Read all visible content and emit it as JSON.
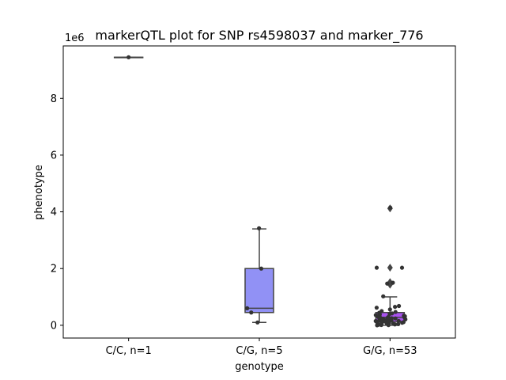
{
  "chart_data": {
    "type": "box",
    "title": "markerQTL plot for SNP rs4598037 and marker_776",
    "xlabel": "genotype",
    "ylabel": "phenotype",
    "y_scale_label": "1e6",
    "y_multiplier": 1000000,
    "ylim": [
      -450000,
      9850000
    ],
    "yticks": [
      0,
      2000000,
      4000000,
      6000000,
      8000000
    ],
    "ytick_labels": [
      "0",
      "2",
      "4",
      "6",
      "8"
    ],
    "categories": [
      "C/C, n=1",
      "C/G, n=5",
      "G/G, n=53"
    ],
    "boxes": [
      {
        "category": "C/C, n=1",
        "whisker_low": 9450000,
        "q1": 9450000,
        "median": 9450000,
        "q3": 9450000,
        "whisker_high": 9450000,
        "outliers": [],
        "color": "#ea6cf2",
        "points": [
          9450000
        ]
      },
      {
        "category": "C/G, n=5",
        "whisker_low": 100000,
        "q1": 450000,
        "median": 600000,
        "q3": 2000000,
        "whisker_high": 3400000,
        "outliers": [],
        "color": "#9191f5",
        "points": [
          3420000,
          2000000,
          600000,
          450000,
          100000
        ]
      },
      {
        "category": "G/G, n=53",
        "whisker_low": 0,
        "q1": 120000,
        "median": 280000,
        "q3": 450000,
        "whisker_high": 1000000,
        "outliers": [
          4120000,
          2030000,
          1520000,
          1430000
        ],
        "color": "#a951ef",
        "points": [
          4150000,
          2030000,
          2030000,
          1500000,
          1470000,
          1020000,
          680000,
          650000,
          620000,
          560000,
          500000,
          470000,
          440000,
          420000,
          400000,
          380000,
          360000,
          340000,
          320000,
          300000,
          290000,
          280000,
          270000,
          260000,
          250000,
          240000,
          230000,
          220000,
          210000,
          200000,
          190000,
          180000,
          170000,
          160000,
          150000,
          140000,
          130000,
          120000,
          110000,
          100000,
          90000,
          80000,
          70000,
          60000,
          50000,
          40000,
          30000,
          20000,
          10000,
          5000,
          0,
          150000,
          250000
        ]
      }
    ]
  }
}
